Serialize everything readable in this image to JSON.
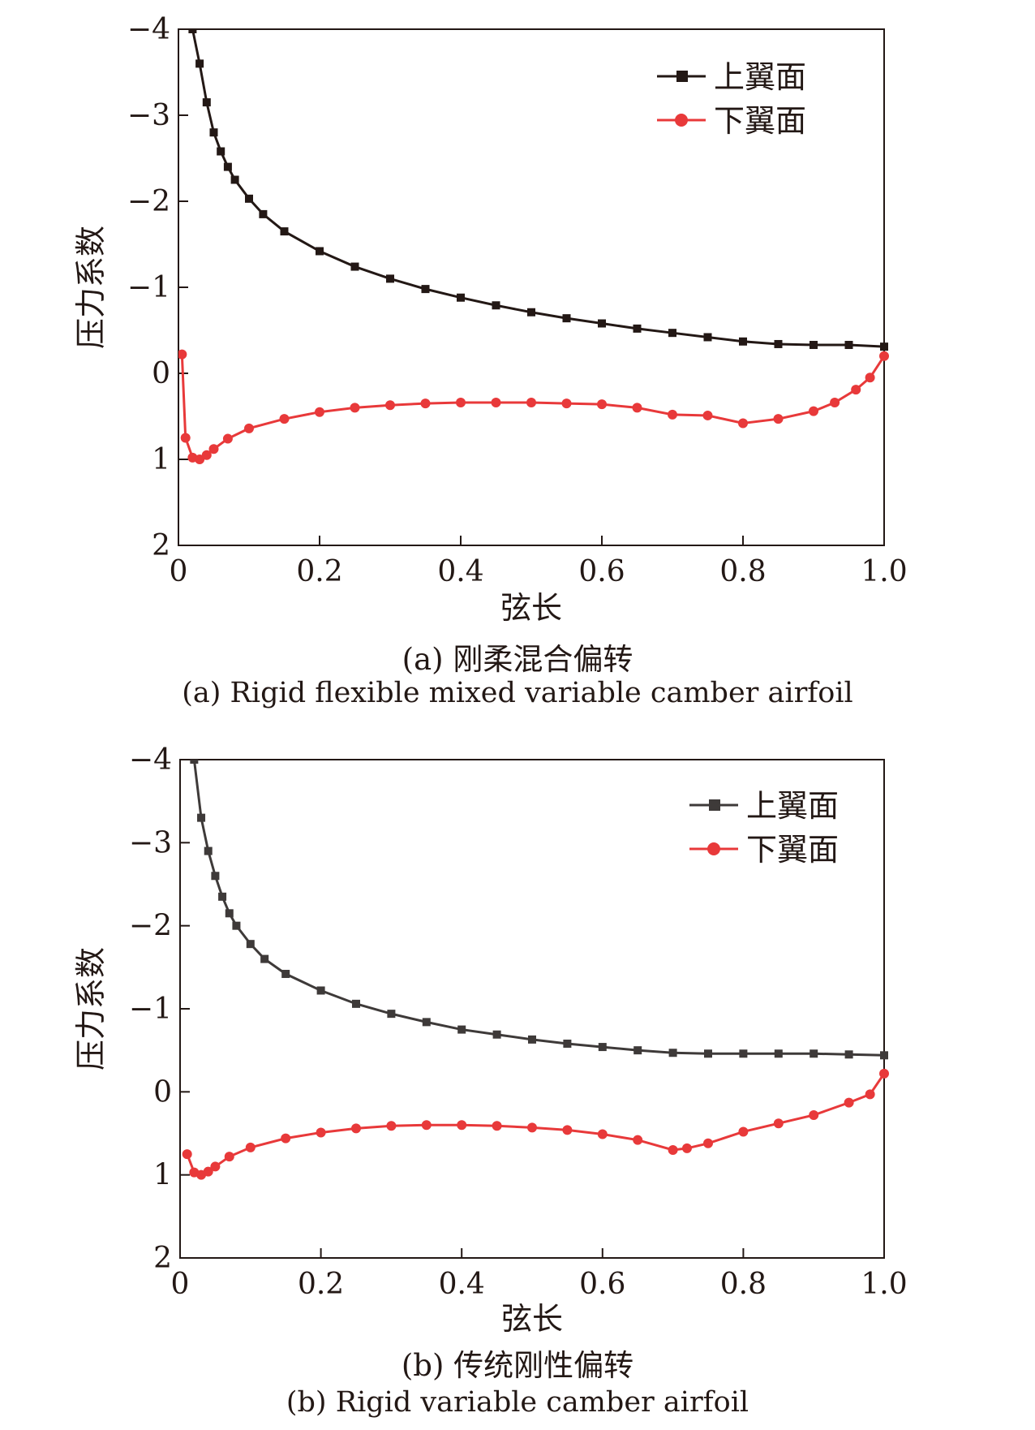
{
  "figures": [
    {
      "caption_cn": "(a) 刚柔混合偏转",
      "caption_en": "(a) Rigid flexible mixed variable camber airfoil"
    },
    {
      "caption_cn": "(b) 传统刚性偏转",
      "caption_en": "(b) Rigid variable camber airfoil"
    }
  ],
  "chart_data": [
    {
      "type": "line",
      "xlabel": "弦长",
      "ylabel": "压力系数",
      "xlim": [
        0,
        1.0
      ],
      "ylim": [
        2,
        -4
      ],
      "y_inverted": true,
      "xticks": [
        "0",
        "0.2",
        "0.4",
        "0.6",
        "0.8",
        "1.0"
      ],
      "yticks": [
        "-4",
        "-3",
        "-2",
        "-1",
        "0",
        "1",
        "2"
      ],
      "legend_position": "top-right",
      "grid": false,
      "series": [
        {
          "name": "上翼面",
          "color": "#231815",
          "marker": "square",
          "points": [
            [
              0.02,
              -4.0
            ],
            [
              0.03,
              -3.6
            ],
            [
              0.04,
              -3.15
            ],
            [
              0.05,
              -2.8
            ],
            [
              0.06,
              -2.58
            ],
            [
              0.07,
              -2.4
            ],
            [
              0.08,
              -2.25
            ],
            [
              0.1,
              -2.03
            ],
            [
              0.12,
              -1.85
            ],
            [
              0.15,
              -1.65
            ],
            [
              0.2,
              -1.42
            ],
            [
              0.25,
              -1.24
            ],
            [
              0.3,
              -1.1
            ],
            [
              0.35,
              -0.98
            ],
            [
              0.4,
              -0.88
            ],
            [
              0.45,
              -0.79
            ],
            [
              0.5,
              -0.71
            ],
            [
              0.55,
              -0.64
            ],
            [
              0.6,
              -0.58
            ],
            [
              0.65,
              -0.52
            ],
            [
              0.7,
              -0.47
            ],
            [
              0.75,
              -0.42
            ],
            [
              0.8,
              -0.37
            ],
            [
              0.85,
              -0.34
            ],
            [
              0.9,
              -0.33
            ],
            [
              0.95,
              -0.33
            ],
            [
              1.0,
              -0.31
            ]
          ]
        },
        {
          "name": "下翼面",
          "color": "#e8393a",
          "marker": "circle",
          "points": [
            [
              0.005,
              -0.22
            ],
            [
              0.01,
              0.75
            ],
            [
              0.02,
              0.98
            ],
            [
              0.03,
              1.0
            ],
            [
              0.04,
              0.95
            ],
            [
              0.05,
              0.88
            ],
            [
              0.07,
              0.76
            ],
            [
              0.1,
              0.64
            ],
            [
              0.15,
              0.53
            ],
            [
              0.2,
              0.45
            ],
            [
              0.25,
              0.4
            ],
            [
              0.3,
              0.37
            ],
            [
              0.35,
              0.35
            ],
            [
              0.4,
              0.34
            ],
            [
              0.45,
              0.34
            ],
            [
              0.5,
              0.34
            ],
            [
              0.55,
              0.35
            ],
            [
              0.6,
              0.36
            ],
            [
              0.65,
              0.4
            ],
            [
              0.7,
              0.48
            ],
            [
              0.75,
              0.49
            ],
            [
              0.8,
              0.58
            ],
            [
              0.85,
              0.53
            ],
            [
              0.9,
              0.44
            ],
            [
              0.93,
              0.34
            ],
            [
              0.96,
              0.19
            ],
            [
              0.98,
              0.05
            ],
            [
              1.0,
              -0.2
            ]
          ]
        }
      ]
    },
    {
      "type": "line",
      "xlabel": "弦长",
      "ylabel": "压力系数",
      "xlim": [
        0,
        1.0
      ],
      "ylim": [
        2,
        -4
      ],
      "y_inverted": true,
      "xticks": [
        "0",
        "0.2",
        "0.4",
        "0.6",
        "0.8",
        "1.0"
      ],
      "yticks": [
        "-4",
        "-3",
        "-2",
        "-1",
        "0",
        "1",
        "2"
      ],
      "legend_position": "top-right",
      "grid": false,
      "series": [
        {
          "name": "上翼面",
          "color": "#3e3a39",
          "marker": "square",
          "points": [
            [
              0.02,
              -4.0
            ],
            [
              0.03,
              -3.3
            ],
            [
              0.04,
              -2.9
            ],
            [
              0.05,
              -2.6
            ],
            [
              0.06,
              -2.35
            ],
            [
              0.07,
              -2.15
            ],
            [
              0.08,
              -2.0
            ],
            [
              0.1,
              -1.78
            ],
            [
              0.12,
              -1.6
            ],
            [
              0.15,
              -1.42
            ],
            [
              0.2,
              -1.22
            ],
            [
              0.25,
              -1.06
            ],
            [
              0.3,
              -0.94
            ],
            [
              0.35,
              -0.84
            ],
            [
              0.4,
              -0.75
            ],
            [
              0.45,
              -0.69
            ],
            [
              0.5,
              -0.63
            ],
            [
              0.55,
              -0.58
            ],
            [
              0.6,
              -0.54
            ],
            [
              0.65,
              -0.5
            ],
            [
              0.7,
              -0.47
            ],
            [
              0.75,
              -0.46
            ],
            [
              0.8,
              -0.46
            ],
            [
              0.85,
              -0.46
            ],
            [
              0.9,
              -0.46
            ],
            [
              0.95,
              -0.45
            ],
            [
              1.0,
              -0.44
            ]
          ]
        },
        {
          "name": "下翼面",
          "color": "#e8393a",
          "marker": "circle",
          "points": [
            [
              0.01,
              0.75
            ],
            [
              0.02,
              0.97
            ],
            [
              0.03,
              1.0
            ],
            [
              0.04,
              0.96
            ],
            [
              0.05,
              0.9
            ],
            [
              0.07,
              0.78
            ],
            [
              0.1,
              0.67
            ],
            [
              0.15,
              0.56
            ],
            [
              0.2,
              0.49
            ],
            [
              0.25,
              0.44
            ],
            [
              0.3,
              0.41
            ],
            [
              0.35,
              0.4
            ],
            [
              0.4,
              0.4
            ],
            [
              0.45,
              0.41
            ],
            [
              0.5,
              0.43
            ],
            [
              0.55,
              0.46
            ],
            [
              0.6,
              0.51
            ],
            [
              0.65,
              0.58
            ],
            [
              0.7,
              0.7
            ],
            [
              0.72,
              0.68
            ],
            [
              0.75,
              0.62
            ],
            [
              0.8,
              0.48
            ],
            [
              0.85,
              0.38
            ],
            [
              0.9,
              0.28
            ],
            [
              0.95,
              0.13
            ],
            [
              0.98,
              0.03
            ],
            [
              1.0,
              -0.22
            ]
          ]
        }
      ]
    }
  ]
}
